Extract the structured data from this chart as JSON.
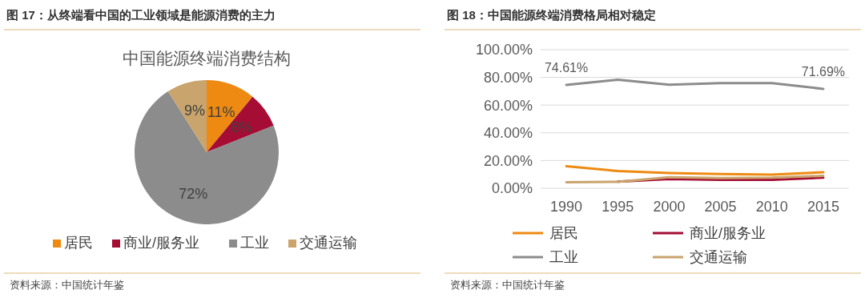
{
  "chart_data": [
    {
      "type": "pie",
      "title": "图 17：从终端看中国的工业领域是能源消费的主力",
      "subtitle": "中国能源终端消费结构",
      "categories": [
        "居民",
        "商业/服务业",
        "工业",
        "交通运输"
      ],
      "values": [
        11,
        8,
        72,
        9
      ],
      "colors": [
        "#ee8a12",
        "#a50d35",
        "#8c8c8c",
        "#c9a46c"
      ],
      "value_labels": [
        "11%",
        "8%",
        "72%",
        "9%"
      ],
      "legend": "bottom",
      "annotations": [
        "资料来源：中国统计年鉴"
      ]
    },
    {
      "type": "line",
      "title": "图 18：中国能源终端消费格局相对稳定",
      "categories": [
        "1990",
        "1995",
        "2000",
        "2005",
        "2010",
        "2015"
      ],
      "series": [
        {
          "name": "居民",
          "color": "#ee8a12",
          "values": [
            15.9,
            12.4,
            11.0,
            10.2,
            9.8,
            11.6
          ]
        },
        {
          "name": "商业/服务业",
          "color": "#a50d35",
          "values": [
            null,
            4.8,
            6.6,
            6.0,
            6.0,
            7.6
          ]
        },
        {
          "name": "工业",
          "color": "#8c8c8c",
          "values": [
            74.61,
            78.3,
            74.7,
            75.9,
            75.9,
            71.69
          ],
          "value_labels": [
            "74.61%",
            null,
            null,
            null,
            null,
            "71.69%"
          ]
        },
        {
          "name": "交通运输",
          "color": "#c9a46c",
          "values": [
            4.4,
            4.6,
            8.0,
            7.4,
            7.6,
            9.0
          ]
        }
      ],
      "ylim": [
        0,
        100
      ],
      "yticks": [
        {
          "value": 0,
          "label": "0.00%"
        },
        {
          "value": 20,
          "label": "20.00%"
        },
        {
          "value": 40,
          "label": "40.00%"
        },
        {
          "value": 60,
          "label": "60.00%"
        },
        {
          "value": 80,
          "label": "80.00%"
        },
        {
          "value": 100,
          "label": "100.00%"
        }
      ],
      "grid": "y",
      "legend": "bottom",
      "marker": "none",
      "line_style": "solid",
      "annotations": [
        "资料来源：中国统计年鉴"
      ]
    }
  ]
}
